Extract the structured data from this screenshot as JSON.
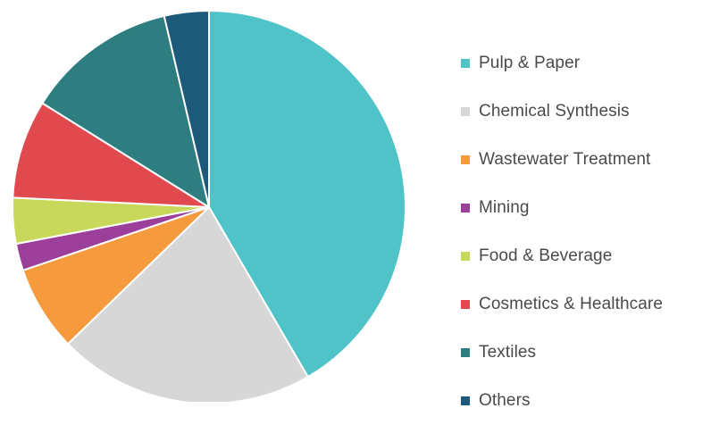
{
  "chart_data": {
    "type": "pie",
    "title": "",
    "categories": [
      "Pulp & Paper",
      "Chemical Synthesis",
      "Wastewater Treatment",
      "Mining",
      "Food & Beverage",
      "Cosmetics & Healthcare",
      "Textiles",
      "Others"
    ],
    "values": [
      43.1,
      21.9,
      7.3,
      2.3,
      3.9,
      8.4,
      12.9,
      3.8
    ],
    "units": "%",
    "colors": [
      "#4fc3c8",
      "#d7d7d7",
      "#f59a3d",
      "#9b3f9b",
      "#c8d85a",
      "#e04a4f",
      "#2e7d80",
      "#1d5a7a"
    ],
    "start_angle_deg": 0,
    "direction": "clockwise",
    "legend_position": "right"
  }
}
